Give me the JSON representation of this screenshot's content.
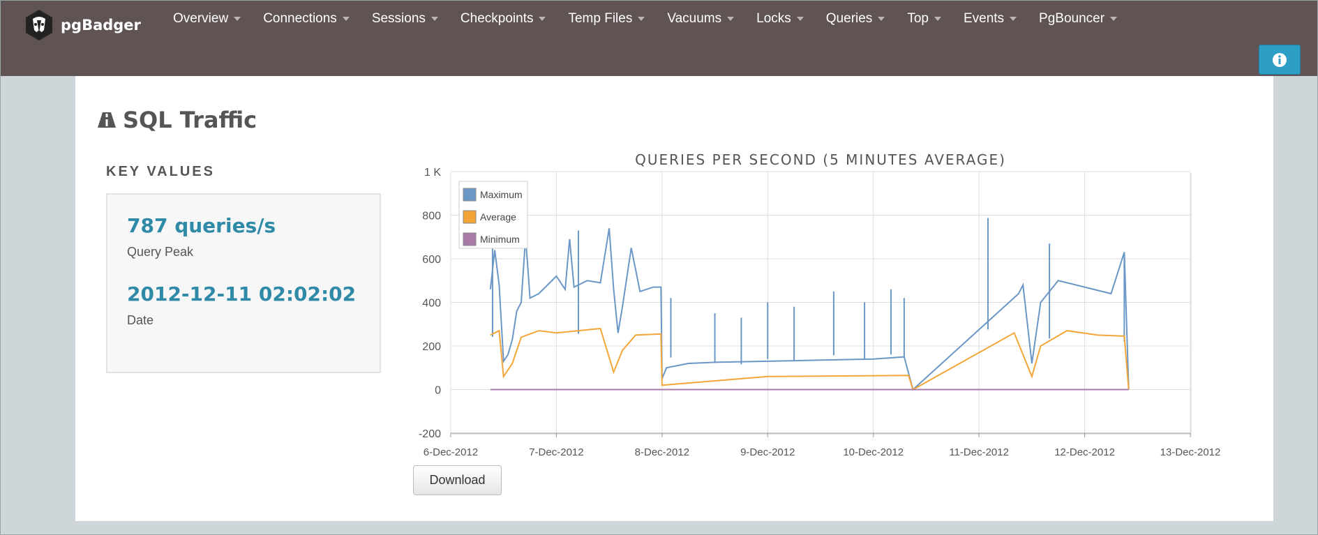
{
  "brand": {
    "name": "pgBadger",
    "logo_icon": "badger-logo-icon"
  },
  "nav": {
    "items": [
      {
        "label": "Overview"
      },
      {
        "label": "Connections"
      },
      {
        "label": "Sessions"
      },
      {
        "label": "Checkpoints"
      },
      {
        "label": "Temp Files"
      },
      {
        "label": "Vacuums"
      },
      {
        "label": "Locks"
      },
      {
        "label": "Queries"
      },
      {
        "label": "Top"
      },
      {
        "label": "Events"
      },
      {
        "label": "PgBouncer"
      }
    ],
    "info_icon": "info-icon"
  },
  "section": {
    "title": "SQL Traffic",
    "icon": "road-icon"
  },
  "key_values": {
    "heading": "KEY VALUES",
    "peak_value": "787 queries/s",
    "peak_label": "Query Peak",
    "date_value": "2012-12-11 02:02:02",
    "date_label": "Date"
  },
  "download_label": "Download",
  "colors": {
    "topbar": "#5f5453",
    "accent": "#2f8aa8",
    "maximum": "#6a97c6",
    "average": "#f3a637",
    "minimum": "#a77aa8"
  },
  "chart_data": {
    "type": "line",
    "title": "QUERIES PER SECOND (5 MINUTES AVERAGE)",
    "xlabel": "",
    "ylabel": "",
    "ylim": [
      -200,
      1000
    ],
    "yticks": [
      "1 K",
      "800",
      "600",
      "400",
      "200",
      "0",
      "-200"
    ],
    "xticks": [
      "6-Dec-2012",
      "7-Dec-2012",
      "8-Dec-2012",
      "9-Dec-2012",
      "10-Dec-2012",
      "11-Dec-2012",
      "12-Dec-2012",
      "13-Dec-2012"
    ],
    "grid": true,
    "legend": "top-left",
    "series": [
      {
        "name": "Maximum",
        "points": [
          [
            "2012-12-06 09:00",
            460
          ],
          [
            "2012-12-06 10:00",
            640
          ],
          [
            "2012-12-06 11:00",
            480
          ],
          [
            "2012-12-06 12:00",
            130
          ],
          [
            "2012-12-06 13:00",
            160
          ],
          [
            "2012-12-06 14:00",
            230
          ],
          [
            "2012-12-06 15:00",
            360
          ],
          [
            "2012-12-06 16:00",
            400
          ],
          [
            "2012-12-06 17:00",
            700
          ],
          [
            "2012-12-06 18:00",
            420
          ],
          [
            "2012-12-06 20:00",
            440
          ],
          [
            "2012-12-06 22:00",
            480
          ],
          [
            "2012-12-07 00:00",
            520
          ],
          [
            "2012-12-07 02:00",
            460
          ],
          [
            "2012-12-07 03:00",
            690
          ],
          [
            "2012-12-07 04:00",
            470
          ],
          [
            "2012-12-07 07:00",
            500
          ],
          [
            "2012-12-07 10:00",
            490
          ],
          [
            "2012-12-07 12:00",
            740
          ],
          [
            "2012-12-07 13:00",
            460
          ],
          [
            "2012-12-07 14:00",
            260
          ],
          [
            "2012-12-07 15:00",
            380
          ],
          [
            "2012-12-07 17:00",
            650
          ],
          [
            "2012-12-07 19:00",
            450
          ],
          [
            "2012-12-07 22:00",
            470
          ],
          [
            "2012-12-07 23:45",
            470
          ],
          [
            "2012-12-08 00:00",
            50
          ],
          [
            "2012-12-08 01:00",
            100
          ],
          [
            "2012-12-08 06:00",
            120
          ],
          [
            "2012-12-08 12:00",
            125
          ],
          [
            "2012-12-09 00:00",
            130
          ],
          [
            "2012-12-09 12:00",
            135
          ],
          [
            "2012-12-10 00:00",
            140
          ],
          [
            "2012-12-10 07:00",
            150
          ],
          [
            "2012-12-10 09:00",
            0
          ],
          [
            "2012-12-11 09:00",
            440
          ],
          [
            "2012-12-11 10:00",
            480
          ],
          [
            "2012-12-11 12:00",
            120
          ],
          [
            "2012-12-11 14:00",
            400
          ],
          [
            "2012-12-11 18:00",
            500
          ],
          [
            "2012-12-12 00:00",
            470
          ],
          [
            "2012-12-12 06:00",
            440
          ],
          [
            "2012-12-12 09:00",
            630
          ],
          [
            "2012-12-12 10:00",
            0
          ]
        ],
        "peaks": [
          [
            "2012-12-06 09:30",
            690
          ],
          [
            "2012-12-07 05:00",
            730
          ],
          [
            "2012-12-08 02:00",
            420
          ],
          [
            "2012-12-08 12:00",
            350
          ],
          [
            "2012-12-08 18:00",
            330
          ],
          [
            "2012-12-09 00:00",
            400
          ],
          [
            "2012-12-09 06:00",
            380
          ],
          [
            "2012-12-09 15:00",
            450
          ],
          [
            "2012-12-09 22:00",
            400
          ],
          [
            "2012-12-10 04:00",
            460
          ],
          [
            "2012-12-10 07:00",
            420
          ],
          [
            "2012-12-11 02:02",
            787
          ],
          [
            "2012-12-11 16:00",
            670
          ],
          [
            "2012-12-12 09:00",
            630
          ]
        ]
      },
      {
        "name": "Average",
        "points": [
          [
            "2012-12-06 09:00",
            250
          ],
          [
            "2012-12-06 11:00",
            270
          ],
          [
            "2012-12-06 12:00",
            60
          ],
          [
            "2012-12-06 14:00",
            120
          ],
          [
            "2012-12-06 16:00",
            240
          ],
          [
            "2012-12-06 20:00",
            270
          ],
          [
            "2012-12-07 00:00",
            260
          ],
          [
            "2012-12-07 10:00",
            280
          ],
          [
            "2012-12-07 13:00",
            80
          ],
          [
            "2012-12-07 15:00",
            180
          ],
          [
            "2012-12-07 18:00",
            250
          ],
          [
            "2012-12-07 23:45",
            255
          ],
          [
            "2012-12-08 00:00",
            20
          ],
          [
            "2012-12-08 12:00",
            40
          ],
          [
            "2012-12-09 00:00",
            60
          ],
          [
            "2012-12-10 08:00",
            65
          ],
          [
            "2012-12-10 09:00",
            0
          ],
          [
            "2012-12-11 08:00",
            260
          ],
          [
            "2012-12-11 12:00",
            60
          ],
          [
            "2012-12-11 14:00",
            200
          ],
          [
            "2012-12-11 20:00",
            270
          ],
          [
            "2012-12-12 03:00",
            250
          ],
          [
            "2012-12-12 09:00",
            245
          ],
          [
            "2012-12-12 10:00",
            0
          ]
        ]
      },
      {
        "name": "Minimum",
        "points": [
          [
            "2012-12-06 09:00",
            0
          ],
          [
            "2012-12-12 10:00",
            0
          ]
        ]
      }
    ]
  }
}
